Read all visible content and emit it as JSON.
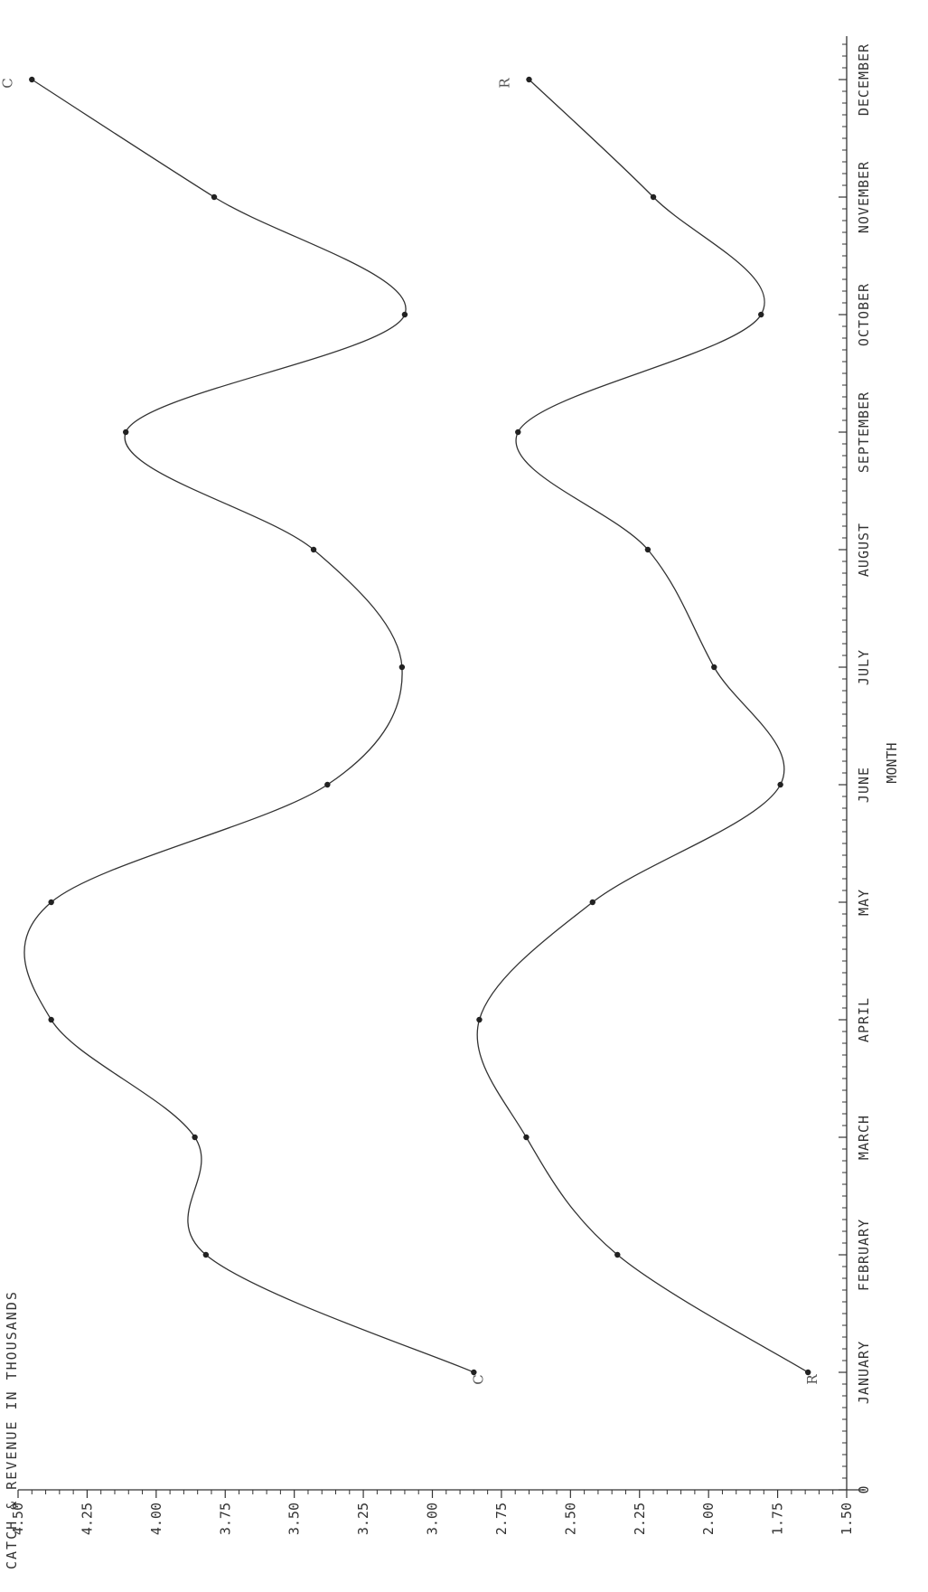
{
  "chart_data": {
    "type": "line",
    "xlabel": "MONTH",
    "ylabel": "CATCH & REVENUE IN THOUSANDS",
    "ylim": [
      1.5,
      4.5
    ],
    "xlim": [
      0,
      12.5
    ],
    "y_ticks": [
      "1.50",
      "1.75",
      "2.00",
      "2.25",
      "2.50",
      "2.75",
      "3.00",
      "3.25",
      "3.50",
      "3.75",
      "4.00",
      "4.25",
      "4.50"
    ],
    "x_origin_label": "0",
    "categories": [
      "JANUARY",
      "FEBRUARY",
      "MARCH",
      "APRIL",
      "MAY",
      "JUNE",
      "JULY",
      "AUGUST",
      "SEPTEMBER",
      "OCTOBER",
      "NOVEMBER",
      "DECEMBER"
    ],
    "series": [
      {
        "name": "C",
        "x": [
          1,
          2,
          3,
          4,
          5,
          6,
          7,
          8,
          9,
          10,
          11,
          12
        ],
        "values": [
          2.85,
          3.82,
          3.86,
          4.38,
          4.38,
          3.38,
          3.11,
          3.43,
          4.11,
          3.1,
          3.79,
          4.45
        ],
        "color": "#333333"
      },
      {
        "name": "R",
        "x": [
          1,
          2,
          3,
          4,
          5,
          6,
          7,
          8,
          9,
          10,
          11,
          12
        ],
        "values": [
          1.64,
          2.33,
          2.66,
          2.83,
          2.42,
          1.74,
          1.98,
          2.22,
          2.69,
          1.81,
          2.2,
          2.65
        ],
        "color": "#333333"
      }
    ],
    "grid": false,
    "legend": "none",
    "orientation": "rotated 90deg (values run bottom-to-top of page as left-to-right, months run top-to-bottom)"
  }
}
